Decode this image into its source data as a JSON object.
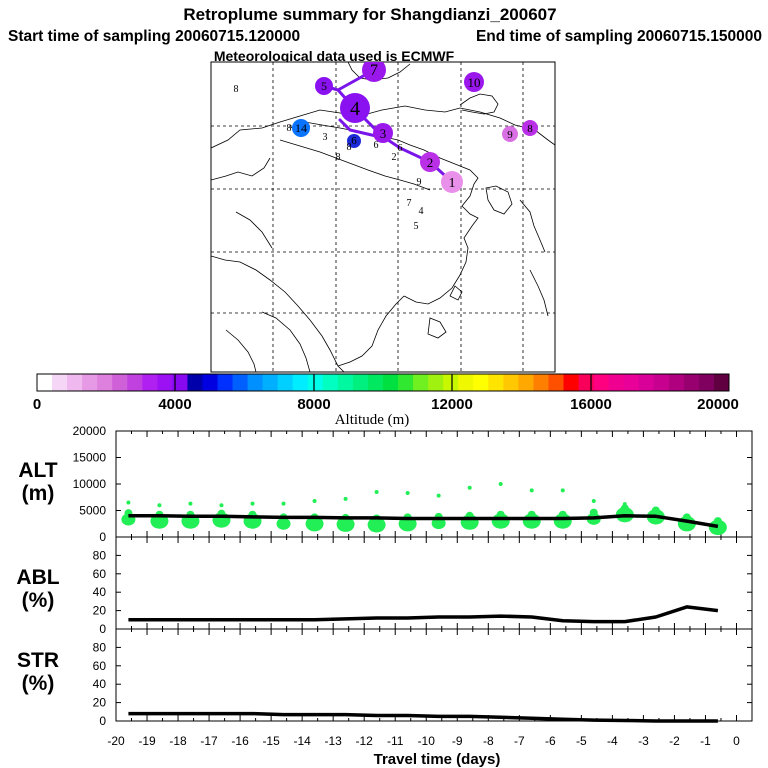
{
  "header": {
    "title": "Retroplume summary for Shangdianzi_200607",
    "start_label": "Start time of sampling 20060715.120000",
    "end_label": "End time of sampling 20060715.150000",
    "met_label": "Meteorological data used is ECMWF"
  },
  "colorbar": {
    "title": "Altitude (m)",
    "ticks": [
      "0",
      "4000",
      "8000",
      "12000",
      "16000",
      "20000"
    ],
    "colors": [
      "#ffffff",
      "#f6d6f6",
      "#efb8ef",
      "#e69ae6",
      "#de80de",
      "#d060d8",
      "#c040e0",
      "#b020f0",
      "#9c10f4",
      "#8808f0",
      "#0000aa",
      "#0000e0",
      "#0030ff",
      "#0060ff",
      "#0090ff",
      "#00b0ff",
      "#00d0ff",
      "#00ecff",
      "#00ffe8",
      "#00ffc0",
      "#00f8a0",
      "#00f080",
      "#00e860",
      "#00e040",
      "#30e830",
      "#70f020",
      "#a0f010",
      "#c8f800",
      "#f0f800",
      "#ffff00",
      "#ffe400",
      "#ffc800",
      "#ffa800",
      "#ff8000",
      "#ff5000",
      "#ff0000",
      "#f8005a",
      "#ff0080",
      "#f00090",
      "#e80098",
      "#d80098",
      "#c80090",
      "#b00080",
      "#980070",
      "#800060",
      "#600040"
    ]
  },
  "map": {
    "clusters": [
      {
        "label": "1",
        "color": "#e890ea"
      },
      {
        "label": "2",
        "color": "#b930e6"
      },
      {
        "label": "3",
        "color": "#9b18ec"
      },
      {
        "label": "4",
        "color": "#8a12f0"
      },
      {
        "label": "5",
        "color": "#8a12f0"
      },
      {
        "label": "6",
        "color": "#1d2ad8"
      },
      {
        "label": "7",
        "color": "#9b18ec"
      },
      {
        "label": "8",
        "color": "#b930e6"
      },
      {
        "label": "9",
        "color": "#d970e4"
      },
      {
        "label": "10",
        "color": "#9b18ec"
      },
      {
        "label": "14",
        "color": "#0a74ff"
      }
    ],
    "small_labels": [
      "8",
      "8",
      "7",
      "4",
      "5",
      "9",
      "3",
      "2",
      "8",
      "8",
      "6",
      "6"
    ]
  },
  "panels": [
    {
      "label": "ALT",
      "unit": "(m)"
    },
    {
      "label": "ABL",
      "unit": "(%)"
    },
    {
      "label": "STR",
      "unit": "(%)"
    }
  ],
  "xaxis": {
    "label": "Travel time (days)",
    "tick_labels": [
      "-20",
      "-19",
      "-18",
      "-17",
      "-16",
      "-15",
      "-14",
      "-13",
      "-12",
      "-11",
      "-10",
      "-9",
      "-8",
      "-7",
      "-6",
      "-5",
      "-4",
      "-3",
      "-2",
      "-1",
      "0"
    ]
  },
  "chart_data": [
    {
      "type": "line",
      "title": "ALT",
      "ylabel": "ALT (m)",
      "xlabel": "Travel time (days)",
      "xlim": [
        -20,
        0
      ],
      "ylim": [
        0,
        20000
      ],
      "yticks": [
        "0",
        "5000",
        "10000",
        "15000",
        "20000"
      ],
      "x": [
        -19.6,
        -18.6,
        -17.6,
        -16.6,
        -15.6,
        -14.6,
        -13.6,
        -12.6,
        -11.6,
        -10.6,
        -9.6,
        -8.6,
        -7.6,
        -6.6,
        -5.6,
        -4.6,
        -3.6,
        -2.6,
        -1.6,
        -0.6
      ],
      "values": [
        4000,
        4000,
        3900,
        3900,
        3800,
        3700,
        3700,
        3600,
        3600,
        3500,
        3500,
        3500,
        3500,
        3500,
        3500,
        3600,
        4000,
        3900,
        3000,
        2000
      ],
      "markers": {
        "color": "#22ee55",
        "x": [
          -19.6,
          -18.6,
          -17.6,
          -16.6,
          -15.6,
          -14.6,
          -13.6,
          -12.6,
          -11.6,
          -10.6,
          -9.6,
          -8.6,
          -7.6,
          -6.6,
          -5.6,
          -4.6,
          -3.6,
          -2.6,
          -1.6,
          -0.6
        ],
        "main_y": [
          3300,
          3000,
          3000,
          3200,
          3000,
          2500,
          2500,
          2400,
          2300,
          2500,
          2600,
          2800,
          3000,
          3000,
          3000,
          3400,
          4200,
          3800,
          2500,
          1800
        ],
        "extra_y": [
          6500,
          6000,
          6300,
          6000,
          6300,
          6300,
          6800,
          7200,
          8500,
          8300,
          7800,
          9300,
          10000,
          8800,
          8800,
          6800,
          6200,
          5200,
          3300,
          2600
        ]
      }
    },
    {
      "type": "line",
      "title": "ABL",
      "ylabel": "ABL (%)",
      "xlabel": "Travel time (days)",
      "xlim": [
        -20,
        0
      ],
      "ylim": [
        0,
        100
      ],
      "yticks": [
        "0",
        "20",
        "40",
        "60",
        "80"
      ],
      "x": [
        -19.6,
        -18.6,
        -17.6,
        -16.6,
        -15.6,
        -14.6,
        -13.6,
        -12.6,
        -11.6,
        -10.6,
        -9.6,
        -8.6,
        -7.6,
        -6.6,
        -5.6,
        -4.6,
        -3.6,
        -2.6,
        -1.6,
        -0.6
      ],
      "values": [
        10,
        10,
        10,
        10,
        10,
        10,
        10,
        11,
        12,
        12,
        13,
        13,
        14,
        13,
        9,
        8,
        8,
        13,
        24,
        20
      ]
    },
    {
      "type": "line",
      "title": "STR",
      "ylabel": "STR (%)",
      "xlabel": "Travel time (days)",
      "xlim": [
        -20,
        0
      ],
      "ylim": [
        0,
        100
      ],
      "yticks": [
        "0",
        "20",
        "40",
        "60",
        "80"
      ],
      "x": [
        -19.6,
        -18.6,
        -17.6,
        -16.6,
        -15.6,
        -14.6,
        -13.6,
        -12.6,
        -11.6,
        -10.6,
        -9.6,
        -8.6,
        -7.6,
        -6.6,
        -5.6,
        -4.6,
        -3.6,
        -2.6,
        -1.6,
        -0.6
      ],
      "values": [
        8,
        8,
        8,
        8,
        8,
        7,
        7,
        7,
        6,
        6,
        5,
        5,
        4,
        3,
        2,
        1,
        0.5,
        0,
        0,
        0
      ]
    }
  ]
}
